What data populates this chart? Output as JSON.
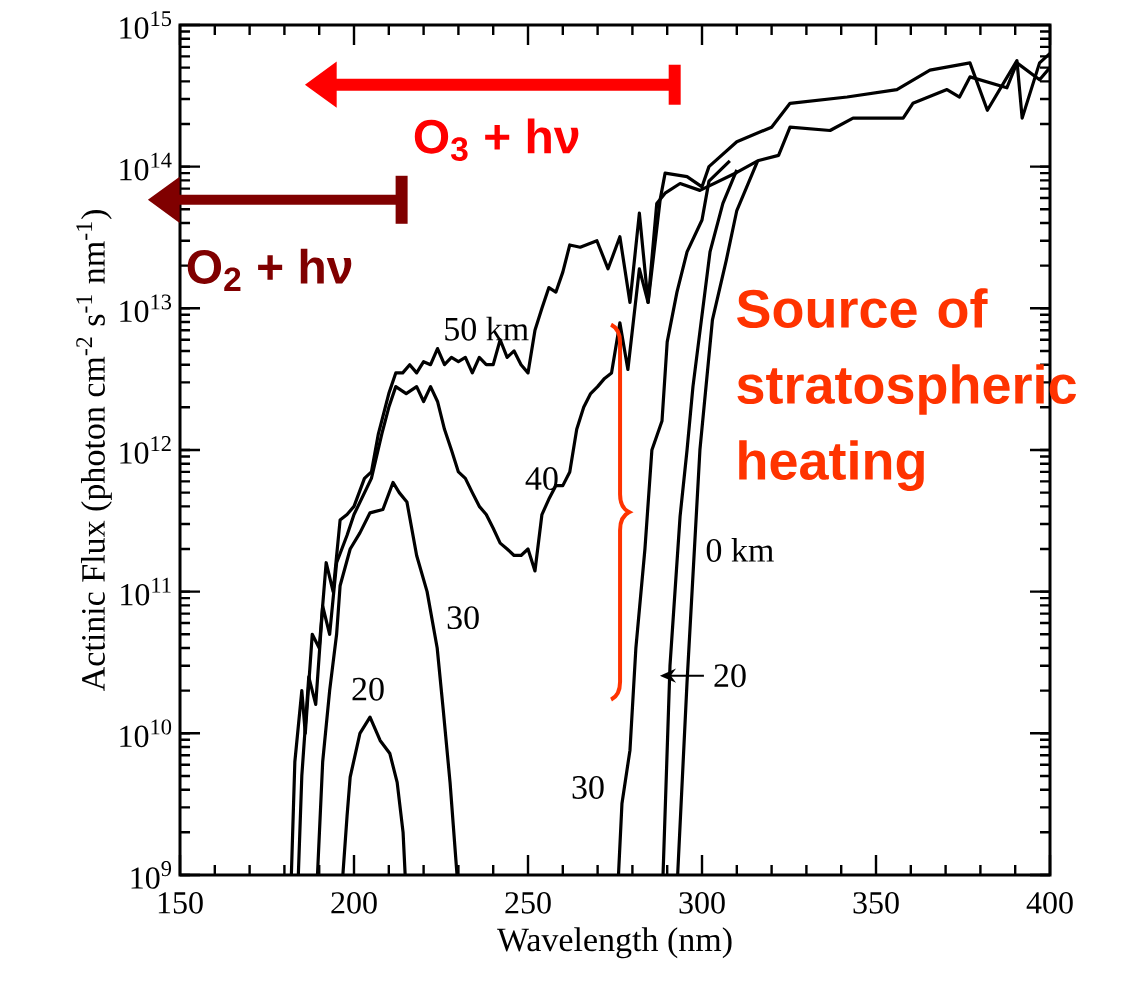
{
  "chart_data": {
    "type": "line",
    "xlabel": "Wavelength (nm)",
    "ylabel": "Actinic Flux (photon cm$^{-2}$ s$^{-1}$ nm$^{-1}$)",
    "log": "y",
    "xlim": [
      150,
      400
    ],
    "xticks": [
      150,
      200,
      250,
      300,
      350,
      400
    ],
    "ylim": [
      1000000000.0,
      1000000000000000.0
    ],
    "yticks": [
      {
        "value": 1000000000.0,
        "label": "10$^{9}$"
      },
      {
        "value": 10000000000.0,
        "label": "10$^{10}$"
      },
      {
        "value": 100000000000.0,
        "label": "10$^{11}$"
      },
      {
        "value": 1000000000000.0,
        "label": "10$^{12}$"
      },
      {
        "value": 10000000000000.0,
        "label": "10$^{13}$"
      },
      {
        "value": 100000000000000.0,
        "label": "10$^{14}$"
      },
      {
        "value": 1000000000000000.0,
        "label": "10$^{15}$"
      }
    ],
    "marker": "none",
    "series": [
      {
        "name": "50 km",
        "color": "#000000",
        "x": [
          182,
          183,
          185,
          186,
          188,
          190,
          192,
          194,
          196,
          198,
          200,
          203,
          205,
          207,
          210,
          212,
          214,
          216,
          218,
          220,
          222,
          224,
          226,
          228,
          230,
          232,
          234,
          236,
          238,
          240,
          242,
          244,
          246,
          248,
          250,
          252,
          254,
          256,
          258,
          260,
          262,
          265,
          269.8,
          273,
          276.4,
          279.3,
          282,
          284.5,
          288,
          289.4,
          295.7,
          300,
          302,
          310,
          320,
          325.3,
          341.7,
          356,
          365.5,
          377,
          382,
          390.5,
          392,
          397,
          400
        ],
        "values": [
          1000000000.0,
          6300000000.0,
          20000000000.0,
          10000000000.0,
          50000000000.0,
          40000000000.0,
          160000000000.0,
          100000000000.0,
          320000000000.0,
          350000000000.0,
          400000000000.0,
          630000000000.0,
          700000000000.0,
          1300000000000.0,
          2500000000000.0,
          3500000000000.0,
          3500000000000.0,
          4000000000000.0,
          3500000000000.0,
          4200000000000.0,
          4000000000000.0,
          5200000000000.0,
          4000000000000.0,
          4500000000000.0,
          4200000000000.0,
          4500000000000.0,
          3500000000000.0,
          4500000000000.0,
          4000000000000.0,
          4000000000000.0,
          6000000000000.0,
          4500000000000.0,
          5000000000000.0,
          4000000000000.0,
          3500000000000.0,
          7000000000000.0,
          10000000000000.0,
          14000000000000.0,
          13000000000000.0,
          18000000000000.0,
          28000000000000.0,
          27000000000000.0,
          30000000000000.0,
          19000000000000.0,
          32000000000000.0,
          11000000000000.0,
          47000000000000.0,
          11000000000000.0,
          59000000000000.0,
          90000000000000.0,
          85000000000000.0,
          72000000000000.0,
          100000000000000.0,
          150000000000000.0,
          190000000000000.0,
          280000000000000.0,
          310000000000000.0,
          350000000000000.0,
          480000000000000.0,
          540000000000000.0,
          250000000000000.0,
          560000000000000.0,
          220000000000000.0,
          540000000000000.0,
          630000000000000.0
        ]
      },
      {
        "name": "40",
        "color": "#000000",
        "x": [
          184,
          185,
          187,
          189,
          191,
          193,
          195,
          198,
          200,
          205,
          208,
          210,
          212,
          215,
          218,
          220,
          222,
          224,
          226,
          228,
          230,
          232,
          234,
          236,
          238,
          240,
          242,
          244,
          246,
          248,
          250,
          252,
          254,
          256,
          258,
          260,
          262,
          264,
          266,
          268,
          270,
          272,
          274,
          276.4,
          278.7,
          282,
          284.5,
          287,
          289.4,
          293.7,
          299.4,
          310,
          316,
          322,
          325.3,
          336.8,
          343.4,
          357.8,
          360.6,
          370.4,
          374,
          377,
          387.6,
          390.5,
          397,
          400
        ],
        "values": [
          1000000000.0,
          5000000000.0,
          25000000000.0,
          16000000000.0,
          79000000000.0,
          50000000000.0,
          160000000000.0,
          250000000000.0,
          350000000000.0,
          630000000000.0,
          1300000000000.0,
          2000000000000.0,
          2800000000000.0,
          2500000000000.0,
          2800000000000.0,
          2200000000000.0,
          2800000000000.0,
          2200000000000.0,
          1400000000000.0,
          1000000000000.0,
          700000000000.0,
          630000000000.0,
          500000000000.0,
          400000000000.0,
          350000000000.0,
          280000000000.0,
          220000000000.0,
          200000000000.0,
          180000000000.0,
          180000000000.0,
          200000000000.0,
          140000000000.0,
          350000000000.0,
          450000000000.0,
          560000000000.0,
          560000000000.0,
          700000000000.0,
          1400000000000.0,
          2000000000000.0,
          2500000000000.0,
          2800000000000.0,
          3200000000000.0,
          3500000000000.0,
          7900000000000.0,
          3700000000000.0,
          19000000000000.0,
          11000000000000.0,
          55000000000000.0,
          65000000000000.0,
          76000000000000.0,
          68000000000000.0,
          91000000000000.0,
          110000000000000.0,
          120000000000000.0,
          190000000000000.0,
          180000000000000.0,
          220000000000000.0,
          220000000000000.0,
          280000000000000.0,
          350000000000000.0,
          310000000000000.0,
          430000000000000.0,
          360000000000000.0,
          540000000000000.0,
          410000000000000.0,
          500000000000000.0
        ]
      },
      {
        "name": "30",
        "color": "#000000",
        "x": [
          189.5,
          191,
          193,
          195,
          196,
          198.9,
          201.7,
          204.6,
          208.3,
          211.2,
          213,
          215.2,
          218,
          221,
          223.9,
          225.6,
          227.6,
          229.6
        ],
        "values": [
          1000000000.0,
          6300000000.0,
          20000000000.0,
          50000000000.0,
          110000000000.0,
          200000000000.0,
          260000000000.0,
          360000000000.0,
          380000000000.0,
          590000000000.0,
          500000000000.0,
          430000000000.0,
          180000000000.0,
          100000000000.0,
          40000000000.0,
          15000000000.0,
          4500000000.0,
          1000000000.0
        ]
      },
      {
        "name": "20",
        "color": "#000000",
        "x": [
          196.8,
          198,
          198.9,
          201.7,
          204.6,
          207.5,
          210.3,
          212.4,
          214.1,
          214.7
        ],
        "values": [
          1000000000.0,
          2600000000.0,
          4900000000.0,
          10000000000.0,
          13000000000.0,
          8900000000.0,
          7200000000.0,
          4500000000.0,
          2000000000.0,
          1000000000.0
        ]
      },
      {
        "name": "30",
        "color": "#000000",
        "x": [
          276,
          277,
          279.3,
          281,
          283.6,
          285.6,
          288.5,
          290,
          292.8,
          295.7,
          300,
          302,
          308
        ],
        "values": [
          1000000000.0,
          3200000000.0,
          7600000000.0,
          40000000000.0,
          200000000000.0,
          1000000000000.0,
          1600000000000.0,
          5800000000000.0,
          13000000000000.0,
          25000000000000.0,
          42000000000000.0,
          79000000000000.0,
          110000000000000.0
        ]
      },
      {
        "name": "0 km",
        "color": "#000000",
        "x": [
          293,
          295.7,
          299.4,
          303,
          307,
          310,
          316
        ],
        "values": [
          1000000000.0,
          23000000000.0,
          1000000000000.0,
          8300000000000.0,
          22000000000000.0,
          49000000000000.0,
          110000000000000.0
        ]
      },
      {
        "name": "20",
        "color": "#000000",
        "x": [
          288.8,
          290.8,
          293.7,
          295.7,
          297.4,
          302.3,
          306,
          310
        ],
        "values": [
          1000000000.0,
          30000000000.0,
          340000000000.0,
          1000000000000.0,
          2800000000000.0,
          25000000000000.0,
          55000000000000.0,
          95000000000000.0
        ]
      }
    ],
    "annotations": [
      "O$_{3}$ + hν",
      "O$_{2}$ + hν",
      "Source of stratospheric heating"
    ]
  }
}
